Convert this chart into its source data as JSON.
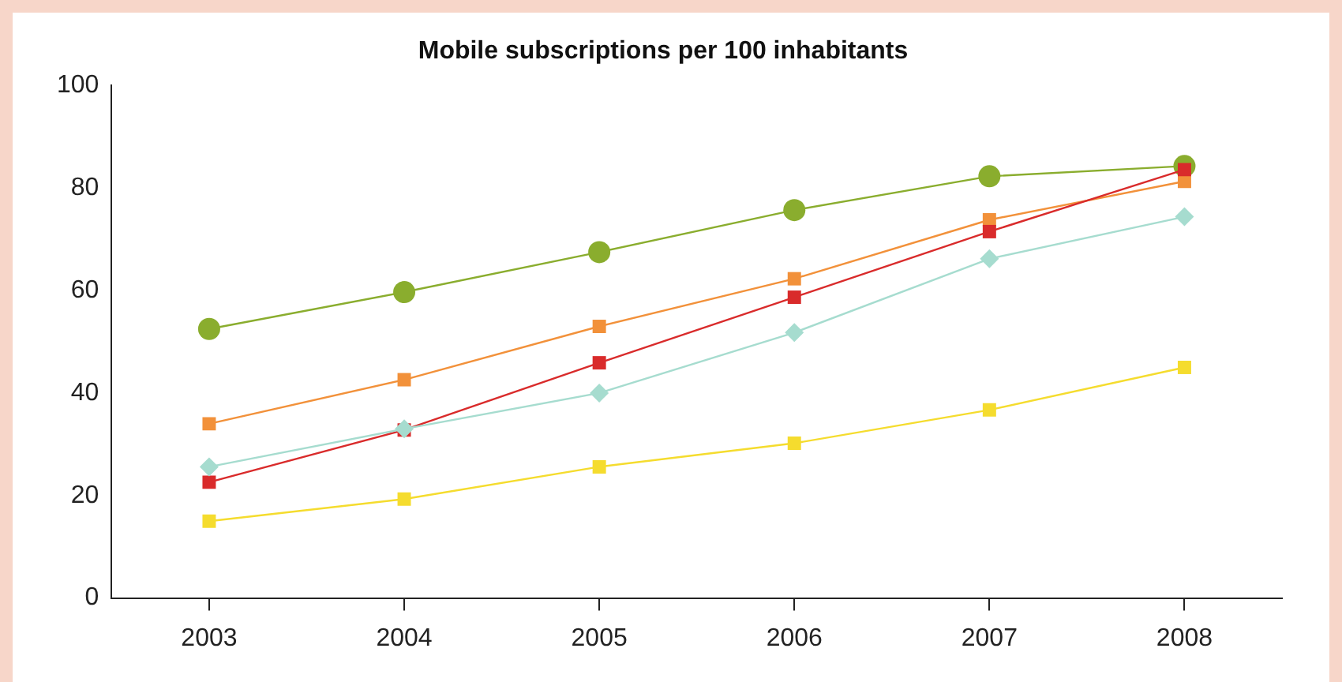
{
  "chart_data": {
    "type": "line",
    "title": "Mobile subscriptions per 100 inhabitants",
    "categories": [
      "2003",
      "2004",
      "2005",
      "2006",
      "2007",
      "2008"
    ],
    "series": [
      {
        "color": "#8aad2e",
        "marker": "circle",
        "values": [
          52.5,
          59.7,
          67.5,
          75.7,
          82.3,
          84.3
        ]
      },
      {
        "color": "#f2913a",
        "marker": "square",
        "values": [
          34,
          42.6,
          53,
          62.3,
          73.8,
          81.3
        ]
      },
      {
        "color": "#d92b2b",
        "marker": "square",
        "values": [
          22.6,
          32.8,
          45.9,
          58.7,
          71.5,
          83.6
        ]
      },
      {
        "color": "#a6dccf",
        "marker": "diamond",
        "values": [
          25.6,
          33,
          40,
          51.8,
          66.2,
          74.4
        ]
      },
      {
        "color": "#f5dc2e",
        "marker": "square",
        "values": [
          15,
          19.3,
          25.6,
          30.2,
          36.7,
          45
        ]
      }
    ],
    "ylim": [
      0,
      100
    ],
    "yticks": [
      0,
      20,
      40,
      60,
      80,
      100
    ],
    "grid": false,
    "legend": false
  }
}
